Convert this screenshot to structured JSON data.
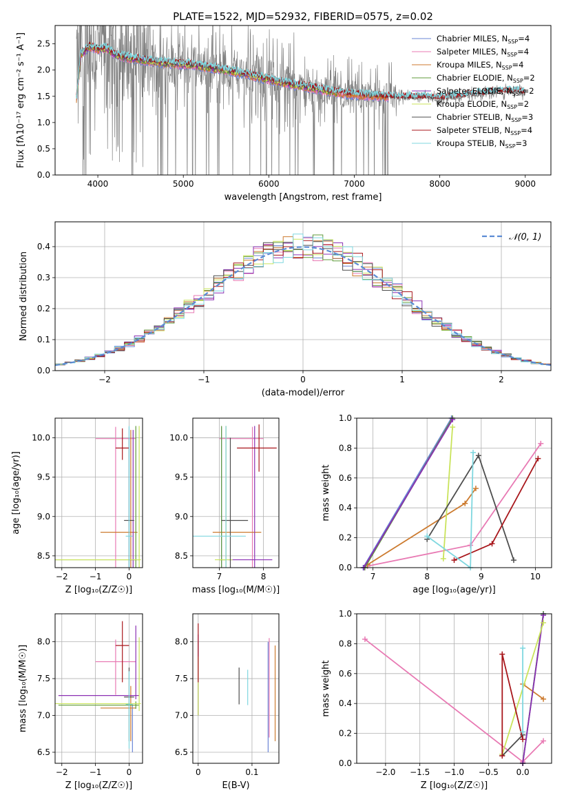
{
  "figure": {
    "title": "PLATE=1522, MJD=52932, FIBERID=0575, z=0.02"
  },
  "colors": {
    "palette": [
      "#6a85d6",
      "#e879b3",
      "#cc7a2e",
      "#5f9a3a",
      "#8a2fb3",
      "#c9e35a",
      "#4d4d4d",
      "#a8161b",
      "#7fd7df"
    ],
    "observed": "#7f7f7f",
    "normal_curve": "#5b8bd4",
    "grid": "#b0b0b0"
  },
  "chart_data": [
    {
      "id": "spectrum",
      "type": "line",
      "title": "PLATE=1522, MJD=52932, FIBERID=0575, z=0.02",
      "xlabel": "wavelength [Angstrom, rest frame]",
      "ylabel": "Flux [fλ10⁻¹⁷ erg cm⁻² s⁻¹ A⁻¹]",
      "xlim": [
        3500,
        9300
      ],
      "ylim": [
        0,
        2.85
      ],
      "xticks": [
        4000,
        5000,
        6000,
        7000,
        8000,
        9000
      ],
      "yticks": [
        0.0,
        0.5,
        1.0,
        1.5,
        2.0,
        2.5
      ],
      "grid": false,
      "legend_position": "upper-right",
      "observed_range": [
        3750,
        9000
      ],
      "models": [
        {
          "name": "Chabrier MILES, N",
          "sub": "SSP",
          "suffix": "=4",
          "range": [
            3750,
            7400
          ]
        },
        {
          "name": "Salpeter MILES, N",
          "sub": "SSP",
          "suffix": "=4",
          "range": [
            3750,
            7400
          ]
        },
        {
          "name": "Kroupa MILES, N",
          "sub": "SSP",
          "suffix": "=4",
          "range": [
            3750,
            7400
          ]
        },
        {
          "name": "Chabrier ELODIE, N",
          "sub": "SSP",
          "suffix": "=2",
          "range": [
            3750,
            6800
          ]
        },
        {
          "name": "Salpeter ELODIE, N",
          "sub": "SSP",
          "suffix": "=2",
          "range": [
            3750,
            6800
          ]
        },
        {
          "name": "Kroupa ELODIE, N",
          "sub": "SSP",
          "suffix": "=2",
          "range": [
            3750,
            6800
          ]
        },
        {
          "name": "Chabrier STELIB, N",
          "sub": "SSP",
          "suffix": "=3",
          "range": [
            3750,
            9000
          ]
        },
        {
          "name": "Salpeter STELIB, N",
          "sub": "SSP",
          "suffix": "=4",
          "range": [
            3750,
            9000
          ]
        },
        {
          "name": "Kroupa STELIB, N",
          "sub": "SSP",
          "suffix": "=3",
          "range": [
            3750,
            9000
          ]
        }
      ],
      "continuum": {
        "x": [
          3750,
          3800,
          3900,
          4000,
          4100,
          4200,
          4300,
          4500,
          4700,
          4900,
          5100,
          5300,
          5500,
          5800,
          6000,
          6300,
          6600,
          6900,
          7100,
          7300,
          7500,
          7700,
          7900,
          8100,
          8300,
          8500,
          8700,
          8900,
          9000
        ],
        "y": [
          1.95,
          2.3,
          2.45,
          2.4,
          2.42,
          2.3,
          2.25,
          2.2,
          2.15,
          2.12,
          2.1,
          2.05,
          2.0,
          1.9,
          1.82,
          1.72,
          1.63,
          1.55,
          1.52,
          1.5,
          1.48,
          1.48,
          1.47,
          1.47,
          1.52,
          1.55,
          1.58,
          1.6,
          1.55
        ]
      }
    },
    {
      "id": "residuals",
      "type": "bar",
      "xlabel": "(data-model)/error",
      "ylabel": "Normed distribution",
      "xlim": [
        -2.5,
        2.5
      ],
      "ylim": [
        0,
        0.48
      ],
      "xticks": [
        -2,
        -1,
        0,
        1,
        2
      ],
      "yticks": [
        0.0,
        0.1,
        0.2,
        0.3,
        0.4
      ],
      "grid": true,
      "legend_position": "upper-right",
      "legend_label": "𝒩(0, 1)",
      "bin_width": 0.1,
      "bin_start": -2.5
    },
    {
      "id": "age-Z",
      "type": "scatter",
      "xlabel": "Z [log₁₀(Z/Z☉)]",
      "ylabel": "age  [log₁₀(age/yr)]",
      "xlim": [
        -2.2,
        0.4
      ],
      "ylim": [
        8.35,
        10.25
      ],
      "xticks": [
        -2,
        -1,
        0
      ],
      "yticks": [
        8.5,
        9.0,
        9.5,
        10.0
      ],
      "grid": true,
      "errorbars": [
        {
          "c": 0,
          "x": 0.0,
          "y": 9.99,
          "xe": [
            0.0,
            0.0
          ],
          "ye": [
            1.65,
            0.15
          ]
        },
        {
          "c": 1,
          "x": -0.4,
          "y": 9.99,
          "xe": [
            0.6,
            0.6
          ],
          "ye": [
            1.65,
            0.15
          ]
        },
        {
          "c": 2,
          "x": 0.05,
          "y": 8.8,
          "xe": [
            0.9,
            0.2
          ],
          "ye": [
            0.45,
            1.3
          ]
        },
        {
          "c": 3,
          "x": 0.2,
          "y": 8.45,
          "xe": [
            2.4,
            0.1
          ],
          "ye": [
            0.1,
            1.7
          ]
        },
        {
          "c": 4,
          "x": 0.12,
          "y": 8.45,
          "xe": [
            0.1,
            0.1
          ],
          "ye": [
            0.1,
            1.65
          ]
        },
        {
          "c": 5,
          "x": 0.3,
          "y": 8.45,
          "xe": [
            2.5,
            0.05
          ],
          "ye": [
            0.1,
            1.7
          ]
        },
        {
          "c": 6,
          "x": 0.0,
          "y": 8.95,
          "xe": [
            0.15,
            0.15
          ],
          "ye": [
            0.6,
            1.05
          ]
        },
        {
          "c": 7,
          "x": -0.2,
          "y": 9.87,
          "xe": [
            0.2,
            0.2
          ],
          "ye": [
            0.15,
            0.25
          ]
        },
        {
          "c": 8,
          "x": 0.0,
          "y": 8.75,
          "xe": [
            0.1,
            0.1
          ],
          "ye": [
            0.4,
            1.4
          ]
        }
      ]
    },
    {
      "id": "age-mass",
      "type": "scatter",
      "xlabel": "mass [log₁₀(M/M☉)]",
      "ylabel": "",
      "xlim": [
        6.4,
        8.35
      ],
      "ylim": [
        8.35,
        10.25
      ],
      "xticks": [
        7,
        8
      ],
      "yticks": [
        8.5,
        9.0,
        9.5,
        10.0
      ],
      "grid": true,
      "errorbars": [
        {
          "c": 0,
          "x": 7.05,
          "y": 9.99,
          "xe": [
            0.0,
            0.0
          ],
          "ye": [
            1.65,
            0.15
          ]
        },
        {
          "c": 1,
          "x": 7.75,
          "y": 9.99,
          "xe": [
            0.75,
            0.25
          ],
          "ye": [
            1.65,
            0.15
          ]
        },
        {
          "c": 2,
          "x": 7.15,
          "y": 8.8,
          "xe": [
            0.3,
            0.8
          ],
          "ye": [
            0.45,
            1.35
          ]
        },
        {
          "c": 3,
          "x": 7.05,
          "y": 8.45,
          "xe": [
            0.05,
            0.1
          ],
          "ye": [
            0.1,
            1.7
          ]
        },
        {
          "c": 4,
          "x": 7.8,
          "y": 8.45,
          "xe": [
            0.6,
            0.4
          ],
          "ye": [
            0.1,
            1.7
          ]
        },
        {
          "c": 5,
          "x": 7.15,
          "y": 8.45,
          "xe": [
            0.25,
            0.15
          ],
          "ye": [
            0.1,
            1.7
          ]
        },
        {
          "c": 6,
          "x": 7.25,
          "y": 8.95,
          "xe": [
            0.2,
            0.4
          ],
          "ye": [
            0.6,
            1.05
          ]
        },
        {
          "c": 7,
          "x": 7.9,
          "y": 9.87,
          "xe": [
            0.5,
            0.4
          ],
          "ye": [
            0.3,
            0.3
          ]
        },
        {
          "c": 8,
          "x": 7.15,
          "y": 8.75,
          "xe": [
            0.8,
            0.45
          ],
          "ye": [
            0.4,
            1.4
          ]
        }
      ]
    },
    {
      "id": "mw-age",
      "type": "line",
      "xlabel": "age  [log₁₀(age/yr)]",
      "ylabel": "mass weight",
      "xlim": [
        6.7,
        10.3
      ],
      "ylim": [
        0,
        1
      ],
      "xticks": [
        7,
        8,
        9,
        10
      ],
      "yticks": [
        0.0,
        0.2,
        0.4,
        0.6,
        0.8,
        1.0
      ],
      "grid": true,
      "series": [
        {
          "c": 0,
          "x": [
            6.82,
            8.45
          ],
          "y": [
            0.0,
            1.0
          ]
        },
        {
          "c": 1,
          "x": [
            6.9,
            8.8,
            10.1
          ],
          "y": [
            0.01,
            0.15,
            0.83
          ]
        },
        {
          "c": 2,
          "x": [
            6.9,
            8.7,
            8.9
          ],
          "y": [
            0.02,
            0.43,
            0.53
          ]
        },
        {
          "c": 3,
          "x": [
            6.85,
            8.47
          ],
          "y": [
            0.0,
            1.0
          ]
        },
        {
          "c": 4,
          "x": [
            6.83,
            8.47
          ],
          "y": [
            0.0,
            0.99
          ]
        },
        {
          "c": 5,
          "x": [
            8.3,
            8.47
          ],
          "y": [
            0.06,
            0.94
          ]
        },
        {
          "c": 6,
          "x": [
            8.0,
            8.95,
            9.6
          ],
          "y": [
            0.19,
            0.75,
            0.05
          ]
        },
        {
          "c": 7,
          "x": [
            8.5,
            9.2,
            10.05
          ],
          "y": [
            0.05,
            0.16,
            0.73
          ]
        },
        {
          "c": 8,
          "x": [
            8.0,
            8.8,
            8.85
          ],
          "y": [
            0.21,
            0.0,
            0.77
          ]
        }
      ]
    },
    {
      "id": "mass-Z",
      "type": "scatter",
      "xlabel": "Z [log₁₀(Z/Z☉)]",
      "ylabel": "mass [log₁₀(M/M☉)]",
      "xlim": [
        -2.2,
        0.4
      ],
      "ylim": [
        6.35,
        8.38
      ],
      "xticks": [
        -2,
        -1,
        0
      ],
      "yticks": [
        6.5,
        7.0,
        7.5,
        8.0
      ],
      "grid": true,
      "errorbars": [
        {
          "c": 0,
          "x": 0.1,
          "y": 7.05,
          "xe": [
            0.0,
            0.0
          ],
          "ye": [
            0.55,
            0.1
          ]
        },
        {
          "c": 1,
          "x": -0.4,
          "y": 7.73,
          "xe": [
            0.6,
            0.6
          ],
          "ye": [
            0.45,
            0.3
          ]
        },
        {
          "c": 2,
          "x": 0.05,
          "y": 7.1,
          "xe": [
            0.9,
            0.15
          ],
          "ye": [
            0.45,
            0.3
          ]
        },
        {
          "c": 3,
          "x": 0.2,
          "y": 7.14,
          "xe": [
            2.3,
            0.1
          ],
          "ye": [
            0.05,
            0.05
          ]
        },
        {
          "c": 4,
          "x": 0.2,
          "y": 7.27,
          "xe": [
            2.3,
            0.1
          ],
          "ye": [
            0.05,
            0.95
          ]
        },
        {
          "c": 5,
          "x": 0.3,
          "y": 7.16,
          "xe": [
            2.5,
            0.05
          ],
          "ye": [
            0.1,
            0.9
          ]
        },
        {
          "c": 6,
          "x": 0.0,
          "y": 7.25,
          "xe": [
            0.15,
            0.15
          ],
          "ye": [
            0.6,
            0.4
          ]
        },
        {
          "c": 7,
          "x": -0.2,
          "y": 7.95,
          "xe": [
            0.2,
            0.2
          ],
          "ye": [
            0.5,
            0.33
          ]
        },
        {
          "c": 8,
          "x": 0.0,
          "y": 7.15,
          "xe": [
            0.1,
            0.1
          ],
          "ye": [
            0.6,
            0.45
          ]
        }
      ]
    },
    {
      "id": "mass-ebv",
      "type": "scatter",
      "xlabel": "E(B-V)",
      "ylabel": "",
      "xlim": [
        -0.01,
        0.15
      ],
      "ylim": [
        6.35,
        8.38
      ],
      "xticks": [
        0.0,
        0.1
      ],
      "yticks": [
        6.5,
        7.0,
        7.5,
        8.0
      ],
      "grid": true,
      "errorbars": [
        {
          "c": 0,
          "x": 0.13,
          "y": 7.4,
          "ye": [
            0.9,
            0.6
          ]
        },
        {
          "c": 1,
          "x": 0.132,
          "y": 7.5,
          "ye": [
            0.8,
            0.55
          ]
        },
        {
          "c": 2,
          "x": 0.143,
          "y": 7.3,
          "ye": [
            0.65,
            0.65
          ]
        },
        {
          "c": 3,
          "x": 0.0,
          "y": 7.5,
          "ye": [
            0.5,
            0.5
          ]
        },
        {
          "c": 4,
          "x": 0.0,
          "y": 7.6,
          "ye": [
            0.6,
            0.5
          ]
        },
        {
          "c": 5,
          "x": 0.0,
          "y": 7.4,
          "ye": [
            0.4,
            0.4
          ]
        },
        {
          "c": 6,
          "x": 0.076,
          "y": 7.4,
          "ye": [
            0.25,
            0.25
          ]
        },
        {
          "c": 7,
          "x": 0.0,
          "y": 7.85,
          "ye": [
            0.4,
            0.4
          ]
        },
        {
          "c": 8,
          "x": 0.092,
          "y": 7.38,
          "ye": [
            0.24,
            0.24
          ]
        }
      ]
    },
    {
      "id": "mw-Z",
      "type": "line",
      "xlabel": "Z [log₁₀(Z/Z☉)]",
      "ylabel": "mass weight",
      "xlim": [
        -2.42,
        0.42
      ],
      "ylim": [
        0,
        1
      ],
      "xticks": [
        -2.0,
        -1.5,
        -1.0,
        -0.5,
        0.0
      ],
      "yticks": [
        0.0,
        0.2,
        0.4,
        0.6,
        0.8,
        1.0
      ],
      "grid": true,
      "series": [
        {
          "c": 0,
          "x": [
            0.0,
            0.3
          ],
          "y": [
            0.0,
            1.0
          ]
        },
        {
          "c": 1,
          "x": [
            -2.3,
            0.0,
            0.3
          ],
          "y": [
            0.83,
            0.01,
            0.15
          ]
        },
        {
          "c": 2,
          "x": [
            0.0,
            0.3
          ],
          "y": [
            0.53,
            0.43
          ]
        },
        {
          "c": 3,
          "x": [
            0.0,
            0.3
          ],
          "y": [
            0.0,
            1.0
          ]
        },
        {
          "c": 4,
          "x": [
            0.0,
            0.3
          ],
          "y": [
            0.0,
            0.99
          ]
        },
        {
          "c": 5,
          "x": [
            -0.3,
            0.3
          ],
          "y": [
            0.06,
            0.94
          ]
        },
        {
          "c": 6,
          "x": [
            -0.3,
            0.0
          ],
          "y": [
            0.05,
            0.19
          ]
        },
        {
          "c": 7,
          "x": [
            -0.3,
            -0.3,
            0.0
          ],
          "y": [
            0.05,
            0.73,
            0.16
          ]
        },
        {
          "c": 8,
          "x": [
            0.0,
            0.0
          ],
          "y": [
            0.21,
            0.77
          ]
        }
      ]
    }
  ]
}
